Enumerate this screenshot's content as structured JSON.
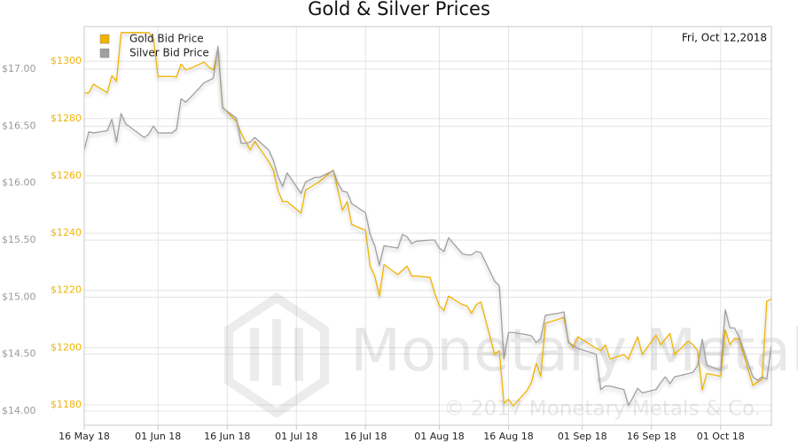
{
  "chart_data": {
    "type": "line",
    "title": "Gold & Silver Prices",
    "annotation": "Fri, Oct 12,2018",
    "watermark": "Monetary Metals",
    "copyright": "© 2017 Monetary Metals & Co.",
    "grid": true,
    "legend": "top-left",
    "xlim": [
      "2018-05-16",
      "2018-10-12"
    ],
    "xticks": [
      {
        "value": "2018-05-16",
        "label": "16 May 18"
      },
      {
        "value": "2018-06-01",
        "label": "01 Jun 18"
      },
      {
        "value": "2018-06-16",
        "label": "16 Jun 18"
      },
      {
        "value": "2018-07-01",
        "label": "01 Jul 18"
      },
      {
        "value": "2018-07-16",
        "label": "16 Jul 18"
      },
      {
        "value": "2018-08-01",
        "label": "01 Aug 18"
      },
      {
        "value": "2018-08-16",
        "label": "16 Aug 18"
      },
      {
        "value": "2018-09-01",
        "label": "01 Sep 18"
      },
      {
        "value": "2018-09-16",
        "label": "16 Sep 18"
      },
      {
        "value": "2018-10-01",
        "label": "01 Oct 18"
      }
    ],
    "ylim": [
      13.876,
      17.373
    ],
    "yticks": [
      {
        "value": 14,
        "label": "$14.00"
      },
      {
        "value": 14.5,
        "label": "$14.50"
      },
      {
        "value": 15,
        "label": "$15.00"
      },
      {
        "value": 15.5,
        "label": "$15.50"
      },
      {
        "value": 16,
        "label": "$16.00"
      },
      {
        "value": 16.5,
        "label": "$16.50"
      },
      {
        "value": 17,
        "label": "$17.00"
      }
    ],
    "y2lim": [
      1172.9,
      1312.1
    ],
    "y2ticks": [
      {
        "value": 1180,
        "label": "$1180"
      },
      {
        "value": 1200,
        "label": "$1200"
      },
      {
        "value": 1220,
        "label": "$1220"
      },
      {
        "value": 1240,
        "label": "$1240"
      },
      {
        "value": 1260,
        "label": "$1260"
      },
      {
        "value": 1280,
        "label": "$1280"
      },
      {
        "value": 1300,
        "label": "$1300"
      }
    ],
    "x": [
      "2018-05-16",
      "2018-05-17",
      "2018-05-18",
      "2018-05-21",
      "2018-05-22",
      "2018-05-23",
      "2018-05-24",
      "2018-05-25",
      "2018-05-29",
      "2018-05-30",
      "2018-05-31",
      "2018-06-01",
      "2018-06-04",
      "2018-06-05",
      "2018-06-06",
      "2018-06-07",
      "2018-06-08",
      "2018-06-11",
      "2018-06-12",
      "2018-06-13",
      "2018-06-14",
      "2018-06-15",
      "2018-06-18",
      "2018-06-19",
      "2018-06-20",
      "2018-06-21",
      "2018-06-22",
      "2018-06-25",
      "2018-06-26",
      "2018-06-27",
      "2018-06-28",
      "2018-06-29",
      "2018-07-02",
      "2018-07-03",
      "2018-07-05",
      "2018-07-06",
      "2018-07-09",
      "2018-07-10",
      "2018-07-11",
      "2018-07-12",
      "2018-07-13",
      "2018-07-16",
      "2018-07-17",
      "2018-07-18",
      "2018-07-19",
      "2018-07-20",
      "2018-07-23",
      "2018-07-24",
      "2018-07-25",
      "2018-07-26",
      "2018-07-27",
      "2018-07-30",
      "2018-07-31",
      "2018-08-01",
      "2018-08-02",
      "2018-08-03",
      "2018-08-06",
      "2018-08-07",
      "2018-08-08",
      "2018-08-09",
      "2018-08-10",
      "2018-08-13",
      "2018-08-14",
      "2018-08-15",
      "2018-08-16",
      "2018-08-17",
      "2018-08-20",
      "2018-08-21",
      "2018-08-22",
      "2018-08-23",
      "2018-08-24",
      "2018-08-27",
      "2018-08-28",
      "2018-08-29",
      "2018-08-30",
      "2018-08-31",
      "2018-09-04",
      "2018-09-05",
      "2018-09-06",
      "2018-09-07",
      "2018-09-10",
      "2018-09-11",
      "2018-09-12",
      "2018-09-13",
      "2018-09-14",
      "2018-09-17",
      "2018-09-18",
      "2018-09-19",
      "2018-09-20",
      "2018-09-21",
      "2018-09-24",
      "2018-09-25",
      "2018-09-26",
      "2018-09-27",
      "2018-09-28",
      "2018-10-01",
      "2018-10-02",
      "2018-10-03",
      "2018-10-04",
      "2018-10-05",
      "2018-10-08",
      "2018-10-09",
      "2018-10-10",
      "2018-10-11",
      "2018-10-12"
    ],
    "series": [
      {
        "name": "Gold Bid Price",
        "color": "#f0b400",
        "axis": "y2",
        "values": [
          1288.9,
          1289,
          1292,
          1289,
          1295,
          1293,
          1310,
          1310,
          1310,
          1310,
          1308,
          1294.7,
          1294.7,
          1294.5,
          1299,
          1297,
          1297.5,
          1299.7,
          1298,
          1297,
          1304,
          1284,
          1279,
          1275,
          1272,
          1269,
          1272,
          1265,
          1262,
          1255,
          1251,
          1251,
          1247,
          1255,
          1257,
          1258,
          1262,
          1255,
          1248,
          1251,
          1243,
          1241,
          1228.5,
          1225,
          1218,
          1229,
          1225.5,
          1227,
          1228.5,
          1225,
          1225,
          1224.5,
          1219,
          1214.6,
          1213,
          1218,
          1215,
          1214.6,
          1212,
          1215,
          1216,
          1197.6,
          1199,
          1180.6,
          1182,
          1179.7,
          1185,
          1188,
          1194.5,
          1190,
          1208.5,
          1210,
          1210.6,
          1202.3,
          1200,
          1203.8,
          1199.8,
          1199,
          1201,
          1196,
          1197.6,
          1196,
          1200,
          1203.8,
          1197.6,
          1204.4,
          1201,
          1203,
          1205,
          1197.6,
          1202.3,
          1201,
          1199,
          1185.2,
          1191,
          1190,
          1206.3,
          1201,
          1203.2,
          1203,
          1186.8,
          1188,
          1189,
          1216.2,
          1217
        ]
      },
      {
        "name": "Silver Bid Price",
        "color": "#a0a0a0",
        "values": [
          16.29,
          16.45,
          16.44,
          16.46,
          16.56,
          16.36,
          16.61,
          16.52,
          16.4,
          16.43,
          16.5,
          16.44,
          16.44,
          16.47,
          16.74,
          16.71,
          16.75,
          16.88,
          16.9,
          16.92,
          17.2,
          16.66,
          16.57,
          16.35,
          16.35,
          16.36,
          16.4,
          16.29,
          16.2,
          16.06,
          15.97,
          16.09,
          15.91,
          16.01,
          16.05,
          16.05,
          16.11,
          16.0,
          15.93,
          15.92,
          15.82,
          15.74,
          15.55,
          15.45,
          15.28,
          15.45,
          15.43,
          15.55,
          15.53,
          15.47,
          15.49,
          15.5,
          15.5,
          15.43,
          15.4,
          15.52,
          15.38,
          15.37,
          15.37,
          15.4,
          15.39,
          15.14,
          15.1,
          14.46,
          14.69,
          14.69,
          14.67,
          14.66,
          14.6,
          14.64,
          14.84,
          14.86,
          14.87,
          14.6,
          14.58,
          14.55,
          14.5,
          14.19,
          14.22,
          14.22,
          14.19,
          14.05,
          14.12,
          14.2,
          14.16,
          14.19,
          14.25,
          14.3,
          14.24,
          14.3,
          14.33,
          14.34,
          14.4,
          14.63,
          14.4,
          14.36,
          14.89,
          14.73,
          14.73,
          14.65,
          14.3,
          14.27,
          14.3,
          14.28,
          14.58
        ]
      }
    ]
  }
}
